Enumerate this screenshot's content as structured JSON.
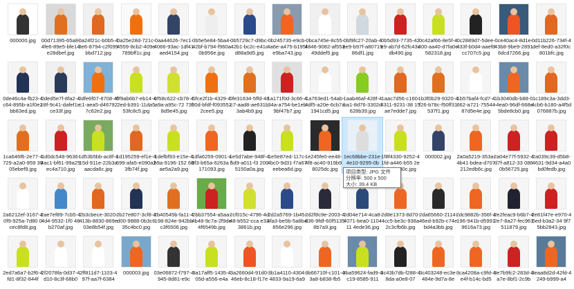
{
  "items": [
    {
      "name": "000000.jpg",
      "bg": "#ffffff",
      "fig": "#333333"
    },
    {
      "name": "00d71395-65a8-4fe6-89e5-bfe14e28dbef.jpg",
      "bg": "#d9d9d9",
      "fig": "#e07020"
    },
    {
      "name": "0a24f21c-b0b5-49e6-8794-c2f099bbd712.jpg",
      "bg": "#f0f0f0",
      "fig": "#e06820"
    },
    {
      "name": "0a25e28d-721c-4559-8cb2-409e789bff1c.jpg",
      "bg": "#fafafa",
      "fig": "#f07010"
    },
    {
      "name": "0aa44626-7ec1-4066-93ac-1df41aed4154.jpg",
      "bg": "#f5f5f5",
      "fig": "#334466"
    },
    {
      "name": "0b5e5e84-5ba4-42bf-b794-f960a0b956e.jpg",
      "bg": "#f5f5f5",
      "fig": "#eeeeee"
    },
    {
      "name": "0b5729c7-d9bc-42b1-bc2c-e41cd88a9d5.jpg",
      "bg": "#f5f5f5",
      "fig": "#2a4a8a"
    },
    {
      "name": "0b245735-e9cb-4a6e-a475-b195fe9ba743.jpg",
      "bg": "#8a9bb0",
      "fig": "#ee6622"
    },
    {
      "name": "0bca745e-8c55-4846-9082-af55349ddef5.jpg",
      "bg": "#f0f0f0",
      "fig": "#ffffff"
    },
    {
      "name": "0bf9fc27-20ab-4ee9-b97f-a8071586df1.jpg",
      "bg": "#f5f5f5",
      "fig": "#d0d8e0"
    },
    {
      "name": "0b5d93-7735-42e9-ab7d-62fc43cdb490.jpg",
      "bg": "#f5f5f5",
      "fig": "#cc2222"
    },
    {
      "name": "0c42af66-8e5f-4400-aa40-d7fa0e582318.jpg",
      "bg": "#f5f5f5",
      "fig": "#c8e020"
    },
    {
      "name": "0c2889d7-5dee-433f-b0d4-aaef8cc707c5.jpg",
      "bg": "#f5f5f5",
      "fig": "#222222"
    },
    {
      "name": "0ce40ac4-8d1e-43b8-9be9-28916dcd7266.jpg",
      "bg": "#3a5a7a",
      "fig": "#ee5522"
    },
    {
      "name": "0d11b226-734f-4def-8ed0-a32f0c801bfc.jpg",
      "bg": "#f5f5f5",
      "fig": "#e06820"
    },
    {
      "name": "0de46c4a-fb23-4c64-895b-a1f0e2bb83ed.jpg",
      "bg": "#f5f5f5",
      "fig": "#223355"
    },
    {
      "name": "0ded5e7f-8fa2-4c8f-9c41-dafef1ece33f.jpg",
      "bg": "#f0f0f0",
      "fig": "#2a3a5a"
    },
    {
      "name": "0dfe6f07-8708-4fc1-aea5-d46792 7c62e2.jpg",
      "bg": "#7fb2d6",
      "fig": "#f07010"
    },
    {
      "name": "0f9ab6b7-eb14-42ed-b391-11da553fc8c5.jpg",
      "bg": "#f5f5f5",
      "fig": "#c8e020"
    },
    {
      "name": "0f58c622-cb78-4a9a-a95c-72 73f8d9e45.jpg",
      "bg": "#f5f5f5",
      "fig": "#d0e030"
    },
    {
      "name": "0fce2f1b-4329-430d-bfdf-f0935522cee5.jpg",
      "bg": "#f5f5f5",
      "fig": "#f07010"
    },
    {
      "name": "0fe31634-5ffd-48c7-aad8-ae631b3ab4b9.jpg",
      "bg": "#f5f5f5",
      "fig": "#e07020"
    },
    {
      "name": "1a171f0d-3c66-434a-a754-be1eb9bf47b7.jpg",
      "bg": "#e0e0e0",
      "fig": "#cc2222"
    },
    {
      "name": "1a763ed1-54ab-4df5-a20e-6cb7a1941cd5.jpg",
      "bg": "#f5f5f5",
      "fig": "#ffffff"
    },
    {
      "name": "1aab46af-428f-4ba1-8d76-3302d628b39.jpg",
      "bg": "#f5f5f5",
      "fig": "#88cc22"
    },
    {
      "name": "1aac7d56-c160-4311-9231-38 15ae7edde7.jpg",
      "bg": "#f5f5f5",
      "fig": "#e06820"
    },
    {
      "name": "1b3f0b29-9320-4f26-b78c-f50ff31537f1.jpg",
      "bg": "#f5f5f5",
      "fig": "#e07020"
    },
    {
      "name": "1b57baf4-fcd7-4662-a721-7554487d5e4e.jpg",
      "bg": "#f5f5f5",
      "fig": "#ffffff"
    },
    {
      "name": "1b3040db-b88-0-4ea0-96df-668e5bde8cb0.jpg",
      "bg": "#6a8aaa",
      "fig": "#ee6622"
    },
    {
      "name": "1c189c3a-3dd3-4cb6-b180-a4f5d076887b.jpg",
      "bg": "#f5f5f5",
      "fig": "#e06820"
    },
    {
      "name": "1ca646f6-2e77-4729-a2a0-959 3905ebef9.jpg",
      "bg": "#f5f5f5",
      "fig": "#e07020"
    },
    {
      "name": "1d0dc548-9636-4ac1-bf61-99a25ec4a710.jpg",
      "bg": "#f5f5f5",
      "fig": "#cc2222"
    },
    {
      "name": "1d53b5bb-ac8f-415d-911e-22b3aaacda6c.jpg",
      "bg": "#7aaa60",
      "fig": "#c8e020"
    },
    {
      "name": "1d195259-ef1e-4699-afa5-e090a23fb74f.jpg",
      "bg": "#f5f5f5",
      "fig": "#e06820"
    },
    {
      "name": "1defbf93-e15e-4b9a-9196-152 68ae5a2a9.jpg",
      "bg": "#f5f5f5",
      "fig": "#c8e020"
    },
    {
      "name": "1dfa6259-0901-40f3-b65a-6263a f171093.jpg",
      "bg": "#f5f5f5",
      "fig": "#ee6622"
    },
    {
      "name": "1e5d7abe-948f-45d9-a011-f3 2005150a0a.jpg",
      "bg": "#f5f5f5",
      "fig": "#222222"
    },
    {
      "name": "1e5e87ed-117c-4bc0-9d31-f7a67eebea6d.jpg",
      "bg": "#f5f5f5",
      "fig": "#c8e020"
    },
    {
      "name": "1e245fe0-ee48-44f8-ac40-919b928025dc.jpg",
      "bg": "#2a2a2a",
      "fig": "#ee6622"
    },
    {
      "name": "1ec68bbe-231e-4e10-9295-0b",
      "bg": "#e8f0f8",
      "fig": "#dddddd"
    },
    {
      "name": "1f8f4330-9252-41fd-a446-b55 2e2b1ba80c.jpg",
      "bg": "#f5f5f5",
      "fig": "#c8e020"
    },
    {
      "name": "000002.jpg",
      "bg": "#f5f5f5",
      "fig": "#334466"
    },
    {
      "name": "2a0a5219-353a-4b41-bdea-d707212edb6c.jpg",
      "bg": "#f5f5f5",
      "fig": "#ee6622"
    },
    {
      "name": "2a04e77f-5932-4d7f-a812-33 0860b56725.jpg",
      "bg": "#f5f5f5",
      "fig": "#cc2222"
    },
    {
      "name": "2a039c39-d5b8-4631-9d34-a4a0bd0fedb.jpg",
      "bg": "#f5f5f5",
      "fig": "#cc2222"
    },
    {
      "name": "2a6212ef-3167-40f9-925a-7d80 0cec8fd8.jpg",
      "bg": "#f5f5f5",
      "fig": "#ffffff"
    },
    {
      "name": "2ae7ef89-7cb5-44d4-9532-1f0 48b270af.jpg",
      "bg": "#f5f5f5",
      "fig": "#4488cc"
    },
    {
      "name": "2b3cbece-3020-413b-8830-869e03e8b54f.jpg",
      "bg": "#f5f5f5",
      "fig": "#e06820"
    },
    {
      "name": "2b27e807-3cf8-4d00-9888-0b3c635c4bc0.jpg",
      "bg": "#f5f5f5",
      "fig": "#223355"
    },
    {
      "name": "2b40545b-fa11-4198-824e-942bbc3f6506.jpg",
      "bg": "#f5f5f5",
      "fig": "#e07020"
    },
    {
      "name": "2bb37554-a5aa-4b48-9c7a-2f9de4f6549b.jpg",
      "bg": "#6aaa4a",
      "fig": "#cc2222"
    },
    {
      "name": "2cf015c-4796-4d48-b552-cca e333861b.jpg",
      "bg": "#f5f5f5",
      "fig": "#d0e030"
    },
    {
      "name": "2d2a5769-1b45-4fa3-be5b-5a8b4856e296.jpg",
      "bg": "#f5f5f5",
      "fig": "#2a4a8a"
    },
    {
      "name": "2d2f8c9e-2003-4d36-9fdf-60f51358b7a9.jpg",
      "bg": "#f5f5f5",
      "fig": "#2a2a3a"
    },
    {
      "name": "2d04e714-4ca8-4071-bea0-110411 4ede36.jpg",
      "bg": "#f5f5f5",
      "fig": "#2a4a7a"
    },
    {
      "name": "2d8e1373-8d70-4cc5-be3c-938a2c3cfb6b.jpg",
      "bg": "#f5f5f5",
      "fig": "#ee6622"
    },
    {
      "name": "2da65660-2114-46ed-b92b-c74ebd4a3bb.jpg",
      "bg": "#f5f5f5",
      "fig": "#2a2a2a"
    },
    {
      "name": "2dc9882b-356f-4196-941b-d59919616a73.jpg",
      "bg": "#f5f5f5",
      "fig": "#ee6622"
    },
    {
      "name": "2e2feac9-b6b7-42e7-8a27-fec961511879.jpg",
      "bg": "#f5f5f5",
      "fig": "#222233"
    },
    {
      "name": "2e81f47e-e970-45ed-b3a2-34 9f75bb2843.jpg",
      "bg": "#f5f5f5",
      "fig": "#cc2222"
    },
    {
      "name": "2ed7a6a7-b2f6-4fd1-8f32-844f",
      "bg": "#f5f5f5",
      "fig": "#c8e020"
    },
    {
      "name": "2f2078fa-0d37-4d10-8c3f-68b0",
      "bg": "#f5f5f5",
      "fig": "#ffffff"
    },
    {
      "name": "2ff811d7-1103-497f-aa7f-6384",
      "bg": "#f5f5f5",
      "fig": "#ffffff"
    },
    {
      "name": "000003.jpg",
      "bg": "#7aa8cc",
      "fig": "#ee6622"
    },
    {
      "name": "03e06872-f797-4945-8d81-e9c",
      "bg": "#f5f5f5",
      "fig": "#333333"
    },
    {
      "name": "3a17aff5-1435-405d-a556-e4a",
      "bg": "#f5f5f5",
      "fig": "#c8e020"
    },
    {
      "name": "3a2660d4-91d0-46eb-8c18-f17e",
      "bg": "#f5f5f5",
      "fig": "#ee5522"
    },
    {
      "name": "3b1a4110-4304-4833-9a19-6a9",
      "bg": "#f5f5f5",
      "fig": "#ffffff"
    },
    {
      "name": "3b66710f-c101-43a8-b838-fb5",
      "bg": "#f5f5f5",
      "fig": "#ee6622"
    },
    {
      "name": "3ba59624-fad9-4c19-8585-911",
      "bg": "#6a8aaa",
      "fig": "#c8e020"
    },
    {
      "name": "3c43b7db-f288-48da-a0e8-07",
      "bg": "#f5f5f5",
      "fig": "#222222"
    },
    {
      "name": "3c403248-ec3e-484e-9d7a-8e",
      "bg": "#f5f5f5",
      "fig": "#ee6622"
    },
    {
      "name": "3ca4208a-c9fd-4e4f-b14c-bd5",
      "bg": "#f5f5f5",
      "fig": "#ee6622"
    },
    {
      "name": "3e7b9fc2-283d-4a7e-8bf1-2c9b",
      "bg": "#f5f5f5",
      "fig": "#cc2222"
    },
    {
      "name": "3eaa8d2d-42fd-4249-b999-a4",
      "bg": "#5a7a9a",
      "fig": "#ee6622"
    }
  ],
  "selected_index": 39,
  "tooltip": {
    "line1": "项目类型: JPG 文件",
    "line2": "分辨率: 500 x 500",
    "line3": "大小: 39.4 KB"
  }
}
